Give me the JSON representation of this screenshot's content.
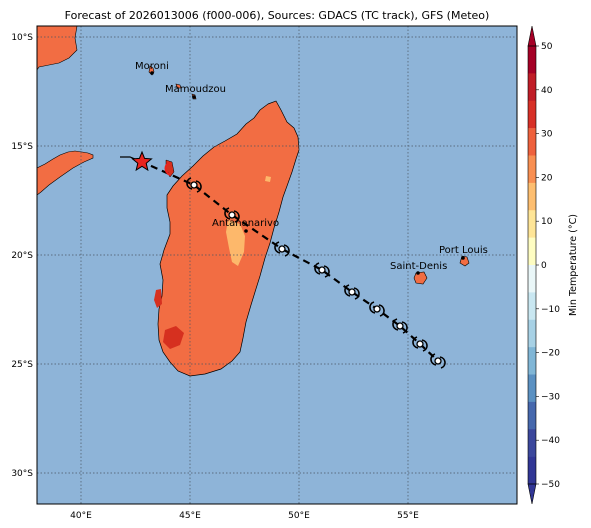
{
  "title": "Forecast of 2026013006 (f000-006), Sources: GDACS (TC track), GFS (Meteo)",
  "colors": {
    "ocean": "#8eb4d8",
    "land": "#f26d43",
    "land_cool": "#fdb86b",
    "land_hot": "#d6301f",
    "track": "#000000",
    "marker": "#e8231e"
  },
  "map": {
    "lon_labels": [
      "40°E",
      "45°E",
      "50°E",
      "55°E"
    ],
    "lat_labels": [
      "10°S",
      "15°S",
      "20°S",
      "25°S",
      "30°S"
    ],
    "cities": [
      {
        "name": "Moroni"
      },
      {
        "name": "Mamoudzou"
      },
      {
        "name": "Antananarivo"
      },
      {
        "name": "Saint-Denis"
      },
      {
        "name": "Port Louis"
      }
    ],
    "current_position_icon": "star-icon",
    "forecast_point_icon": "tropical-cyclone-icon"
  },
  "colorbar": {
    "label": "Min Temperature (°C)",
    "ticks": [
      "50",
      "40",
      "30",
      "20",
      "10",
      "0",
      "−10",
      "−20",
      "−30",
      "−40",
      "−50"
    ],
    "colors": [
      "#a50026",
      "#c01d27",
      "#d73027",
      "#ee613d",
      "#f88f52",
      "#fdbe70",
      "#fee597",
      "#fefdc2",
      "#eaf7f8",
      "#c9e7f1",
      "#a7d1e5",
      "#80b6d6",
      "#5b91c2",
      "#4668ad",
      "#3b479c",
      "#313695"
    ]
  }
}
